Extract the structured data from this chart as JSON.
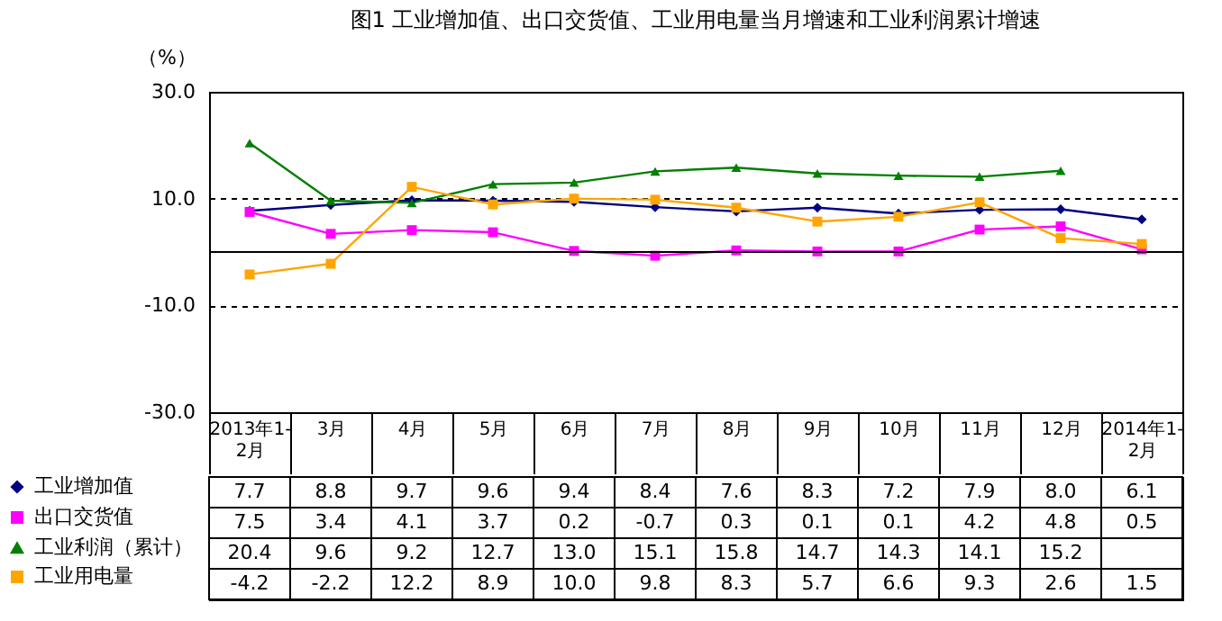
{
  "chart_data": {
    "type": "line",
    "title": "图1 工业增加值、出口交货值、工业用电量当月增速和工业利润累计增速",
    "ylabel": "（%）",
    "categories": [
      "2013年1-2月",
      "3月",
      "4月",
      "5月",
      "6月",
      "7月",
      "8月",
      "9月",
      "10月",
      "11月",
      "12月",
      "2014年1-2月"
    ],
    "series": [
      {
        "name": "工业增加值",
        "color": "#000080",
        "marker": "diamond",
        "values": [
          7.7,
          8.8,
          9.7,
          9.6,
          9.4,
          8.4,
          7.6,
          8.3,
          7.2,
          7.9,
          8.0,
          6.1
        ],
        "value_labels": [
          "7.7",
          "8.8",
          "9.7",
          "9.6",
          "9.4",
          "8.4",
          "7.6",
          "8.3",
          "7.2",
          "7.9",
          "8.0",
          "6.1"
        ]
      },
      {
        "name": "出口交货值",
        "color": "#ff00ff",
        "marker": "square",
        "values": [
          7.5,
          3.4,
          4.1,
          3.7,
          0.2,
          -0.7,
          0.3,
          0.1,
          0.1,
          4.2,
          4.8,
          0.5
        ],
        "value_labels": [
          "7.5",
          "3.4",
          "4.1",
          "3.7",
          "0.2",
          "-0.7",
          "0.3",
          "0.1",
          "0.1",
          "4.2",
          "4.8",
          "0.5"
        ]
      },
      {
        "name": "工业利润（累计）",
        "color": "#008000",
        "marker": "triangle",
        "values": [
          20.4,
          9.6,
          9.2,
          12.7,
          13.0,
          15.1,
          15.8,
          14.7,
          14.3,
          14.1,
          15.2,
          null
        ],
        "value_labels": [
          "20.4",
          "9.6",
          "9.2",
          "12.7",
          "13.0",
          "15.1",
          "15.8",
          "14.7",
          "14.3",
          "14.1",
          "15.2",
          null
        ]
      },
      {
        "name": "工业用电量",
        "color": "#ffa500",
        "marker": "square",
        "values": [
          -4.2,
          -2.2,
          12.2,
          8.9,
          10.0,
          9.8,
          8.3,
          5.7,
          6.6,
          9.3,
          2.6,
          1.5
        ],
        "value_labels": [
          "-4.2",
          "-2.2",
          "12.2",
          "8.9",
          "10.0",
          "9.8",
          "8.3",
          "5.7",
          "6.6",
          "9.3",
          "2.6",
          "1.5"
        ]
      }
    ],
    "ylim": [
      -30,
      30
    ],
    "yticks": [
      {
        "value": -30,
        "label": "-30.0"
      },
      {
        "value": -10,
        "label": "-10.0"
      },
      {
        "value": 10,
        "label": "10.0"
      },
      {
        "value": 30,
        "label": "30.0"
      }
    ],
    "grid": "y",
    "line_style": "solid",
    "legend": "bottom left",
    "ref_lines": [
      {
        "axis": "y",
        "value": 0,
        "color": "#000000",
        "line_style": "solid"
      }
    ]
  }
}
